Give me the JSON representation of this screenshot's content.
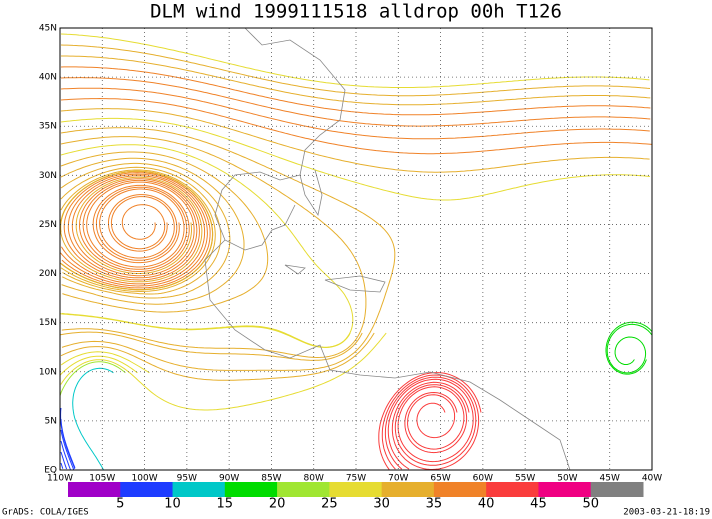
{
  "map": {
    "title": "DLM wind 1999111518 alldrop 00h T126",
    "xticks": [
      "110W",
      "105W",
      "100W",
      "95W",
      "90W",
      "85W",
      "80W",
      "75W",
      "70W",
      "65W",
      "60W",
      "55W",
      "50W",
      "45W",
      "40W"
    ],
    "yticks": [
      "EQ",
      "5N",
      "10N",
      "15N",
      "20N",
      "25N",
      "30N",
      "35N",
      "40N",
      "45N"
    ],
    "colorbar": {
      "colors": [
        "#a000c8",
        "#1e3cff",
        "#00c8c8",
        "#00dc00",
        "#a0e632",
        "#e6dc32",
        "#e6af2d",
        "#f08228",
        "#fa3c3c",
        "#f00082",
        "#808080"
      ],
      "labels": [
        "5",
        "10",
        "15",
        "20",
        "25",
        "30",
        "35",
        "40",
        "45",
        "50"
      ]
    },
    "footer_left": "GrADS: COLA/IGES",
    "footer_right": "2003-03-21-18:19"
  }
}
